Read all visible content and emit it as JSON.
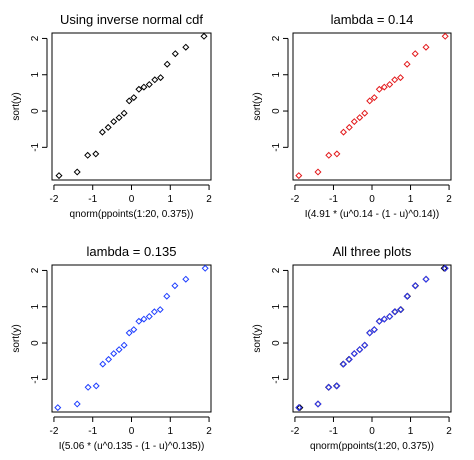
{
  "chart_data": [
    {
      "type": "scatter",
      "title": "Using inverse normal cdf",
      "xlabel": "qnorm(ppoints(1:20, 0.375))",
      "ylabel": "sort(y)",
      "xlim": [
        -2.05,
        2.05
      ],
      "ylim": [
        -1.9,
        2.15
      ],
      "xticks": [
        -2,
        -1,
        0,
        1,
        2
      ],
      "yticks": [
        -1,
        0,
        1,
        2
      ],
      "grid": false,
      "series": [
        {
          "color": "#000000",
          "marker": "diamond-open",
          "x": [
            -1.87,
            -1.4,
            -1.13,
            -0.92,
            -0.75,
            -0.6,
            -0.46,
            -0.32,
            -0.19,
            -0.06,
            0.06,
            0.19,
            0.32,
            0.46,
            0.6,
            0.75,
            0.92,
            1.13,
            1.4,
            1.87
          ],
          "y": [
            -1.78,
            -1.68,
            -1.22,
            -1.18,
            -0.58,
            -0.45,
            -0.29,
            -0.18,
            -0.06,
            0.28,
            0.37,
            0.6,
            0.66,
            0.73,
            0.86,
            0.92,
            1.29,
            1.58,
            1.76,
            2.06
          ]
        }
      ]
    },
    {
      "type": "scatter",
      "title": "lambda = 0.14",
      "xlabel": "I(4.91 * (u^0.14 - (1 - u)^0.14))",
      "ylabel": "sort(y)",
      "xlim": [
        -2.05,
        2.05
      ],
      "ylim": [
        -1.9,
        2.15
      ],
      "xticks": [
        -2,
        -1,
        0,
        1,
        2
      ],
      "yticks": [
        -1,
        0,
        1,
        2
      ],
      "grid": false,
      "series": [
        {
          "color": "#e31a1c",
          "marker": "diamond-open",
          "x": [
            -1.9,
            -1.4,
            -1.12,
            -0.91,
            -0.74,
            -0.59,
            -0.46,
            -0.32,
            -0.19,
            -0.06,
            0.06,
            0.19,
            0.32,
            0.46,
            0.59,
            0.74,
            0.91,
            1.12,
            1.4,
            1.9
          ],
          "y": [
            -1.78,
            -1.68,
            -1.22,
            -1.18,
            -0.58,
            -0.45,
            -0.29,
            -0.18,
            -0.06,
            0.28,
            0.37,
            0.6,
            0.66,
            0.73,
            0.86,
            0.92,
            1.29,
            1.58,
            1.76,
            2.06
          ]
        }
      ]
    },
    {
      "type": "scatter",
      "title": "lambda = 0.135",
      "xlabel": "I(5.06 * (u^0.135 - (1 - u)^0.135))",
      "ylabel": "sort(y)",
      "xlim": [
        -2.05,
        2.05
      ],
      "ylim": [
        -1.9,
        2.15
      ],
      "xticks": [
        -2,
        -1,
        0,
        1,
        2
      ],
      "yticks": [
        -1,
        0,
        1,
        2
      ],
      "grid": false,
      "series": [
        {
          "color": "#1f3fff",
          "marker": "diamond-open",
          "x": [
            -1.9,
            -1.4,
            -1.12,
            -0.91,
            -0.74,
            -0.59,
            -0.46,
            -0.32,
            -0.19,
            -0.06,
            0.06,
            0.19,
            0.32,
            0.46,
            0.59,
            0.74,
            0.91,
            1.12,
            1.4,
            1.9
          ],
          "y": [
            -1.78,
            -1.68,
            -1.22,
            -1.18,
            -0.58,
            -0.45,
            -0.29,
            -0.18,
            -0.06,
            0.28,
            0.37,
            0.6,
            0.66,
            0.73,
            0.86,
            0.92,
            1.29,
            1.58,
            1.76,
            2.06
          ]
        }
      ]
    },
    {
      "type": "scatter",
      "title": "All three plots",
      "xlabel": "qnorm(ppoints(1:20, 0.375))",
      "ylabel": "sort(y)",
      "xlim": [
        -2.05,
        2.05
      ],
      "ylim": [
        -1.9,
        2.15
      ],
      "xticks": [
        -2,
        -1,
        0,
        1,
        2
      ],
      "yticks": [
        -1,
        0,
        1,
        2
      ],
      "grid": false,
      "series": [
        {
          "color": "#000000",
          "marker": "diamond-open",
          "x": [
            -1.87,
            -1.4,
            -1.13,
            -0.92,
            -0.75,
            -0.6,
            -0.46,
            -0.32,
            -0.19,
            -0.06,
            0.06,
            0.19,
            0.32,
            0.46,
            0.6,
            0.75,
            0.92,
            1.13,
            1.4,
            1.87
          ],
          "y": [
            -1.78,
            -1.68,
            -1.22,
            -1.18,
            -0.58,
            -0.45,
            -0.29,
            -0.18,
            -0.06,
            0.28,
            0.37,
            0.6,
            0.66,
            0.73,
            0.86,
            0.92,
            1.29,
            1.58,
            1.76,
            2.06
          ]
        },
        {
          "color": "#e31a1c",
          "marker": "diamond-open",
          "x": [
            -1.9,
            -1.4,
            -1.12,
            -0.91,
            -0.74,
            -0.59,
            -0.46,
            -0.32,
            -0.19,
            -0.06,
            0.06,
            0.19,
            0.32,
            0.46,
            0.59,
            0.74,
            0.91,
            1.12,
            1.4,
            1.9
          ],
          "y": [
            -1.78,
            -1.68,
            -1.22,
            -1.18,
            -0.58,
            -0.45,
            -0.29,
            -0.18,
            -0.06,
            0.28,
            0.37,
            0.6,
            0.66,
            0.73,
            0.86,
            0.92,
            1.29,
            1.58,
            1.76,
            2.06
          ]
        },
        {
          "color": "#1f3fff",
          "marker": "diamond-open",
          "x": [
            -1.9,
            -1.4,
            -1.12,
            -0.91,
            -0.74,
            -0.59,
            -0.46,
            -0.32,
            -0.19,
            -0.06,
            0.06,
            0.19,
            0.32,
            0.46,
            0.59,
            0.74,
            0.91,
            1.12,
            1.4,
            1.9
          ],
          "y": [
            -1.78,
            -1.68,
            -1.22,
            -1.18,
            -0.58,
            -0.45,
            -0.29,
            -0.18,
            -0.06,
            0.28,
            0.37,
            0.6,
            0.66,
            0.73,
            0.86,
            0.92,
            1.29,
            1.58,
            1.76,
            2.06
          ]
        }
      ]
    }
  ]
}
